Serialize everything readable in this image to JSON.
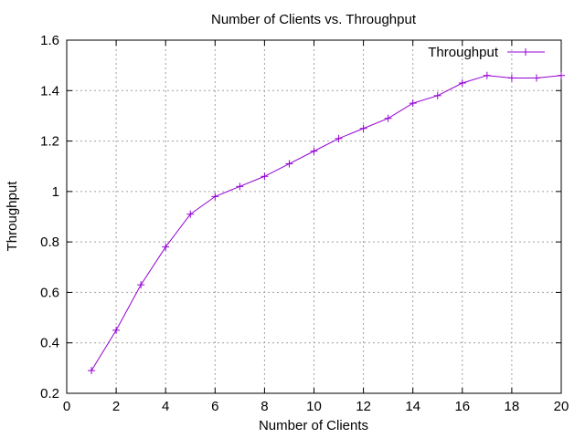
{
  "chart_data": {
    "type": "line",
    "title": "Number of Clients vs. Throughput",
    "xlabel": "Number of Clients",
    "ylabel": "Throughput",
    "xlim": [
      0,
      20
    ],
    "ylim": [
      0.2,
      1.6
    ],
    "xticks": [
      0,
      2,
      4,
      6,
      8,
      10,
      12,
      14,
      16,
      18,
      20
    ],
    "yticks": [
      0.2,
      0.4,
      0.6,
      0.8,
      1,
      1.2,
      1.4,
      1.6
    ],
    "grid": true,
    "legend_position": "top-right",
    "series": [
      {
        "name": "Throughput",
        "color": "#9400d3",
        "marker": "plus",
        "x": [
          1,
          2,
          3,
          4,
          5,
          6,
          7,
          8,
          9,
          10,
          11,
          12,
          13,
          14,
          15,
          16,
          17,
          18,
          19,
          20
        ],
        "y": [
          0.29,
          0.45,
          0.63,
          0.78,
          0.91,
          0.98,
          1.02,
          1.06,
          1.11,
          1.16,
          1.21,
          1.25,
          1.29,
          1.35,
          1.38,
          1.43,
          1.46,
          1.45,
          1.45,
          1.46
        ]
      }
    ]
  }
}
